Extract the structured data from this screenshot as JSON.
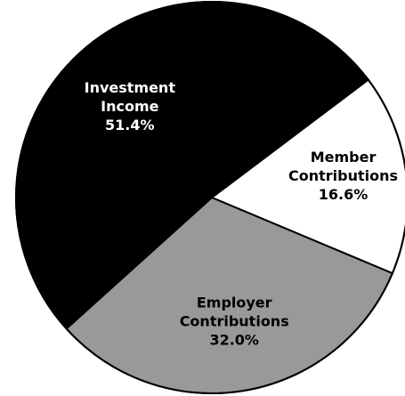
{
  "chart_data": {
    "type": "pie",
    "slices": [
      {
        "label_lines": [
          "Member",
          "Contributions"
        ],
        "value_text": "16.6%",
        "value": 16.6,
        "color": "#ffffff",
        "text_color": "#000000"
      },
      {
        "label_lines": [
          "Employer",
          "Contributions"
        ],
        "value_text": "32.0%",
        "value": 32.0,
        "color": "#999999",
        "text_color": "#000000"
      },
      {
        "label_lines": [
          "Investment",
          "Income"
        ],
        "value_text": "51.4%",
        "value": 51.4,
        "color": "#000000",
        "text_color": "#ffffff"
      }
    ],
    "title": "",
    "start_angle_deg": -37,
    "direction": "clockwise",
    "border_color": "#000000",
    "legend": "none"
  }
}
